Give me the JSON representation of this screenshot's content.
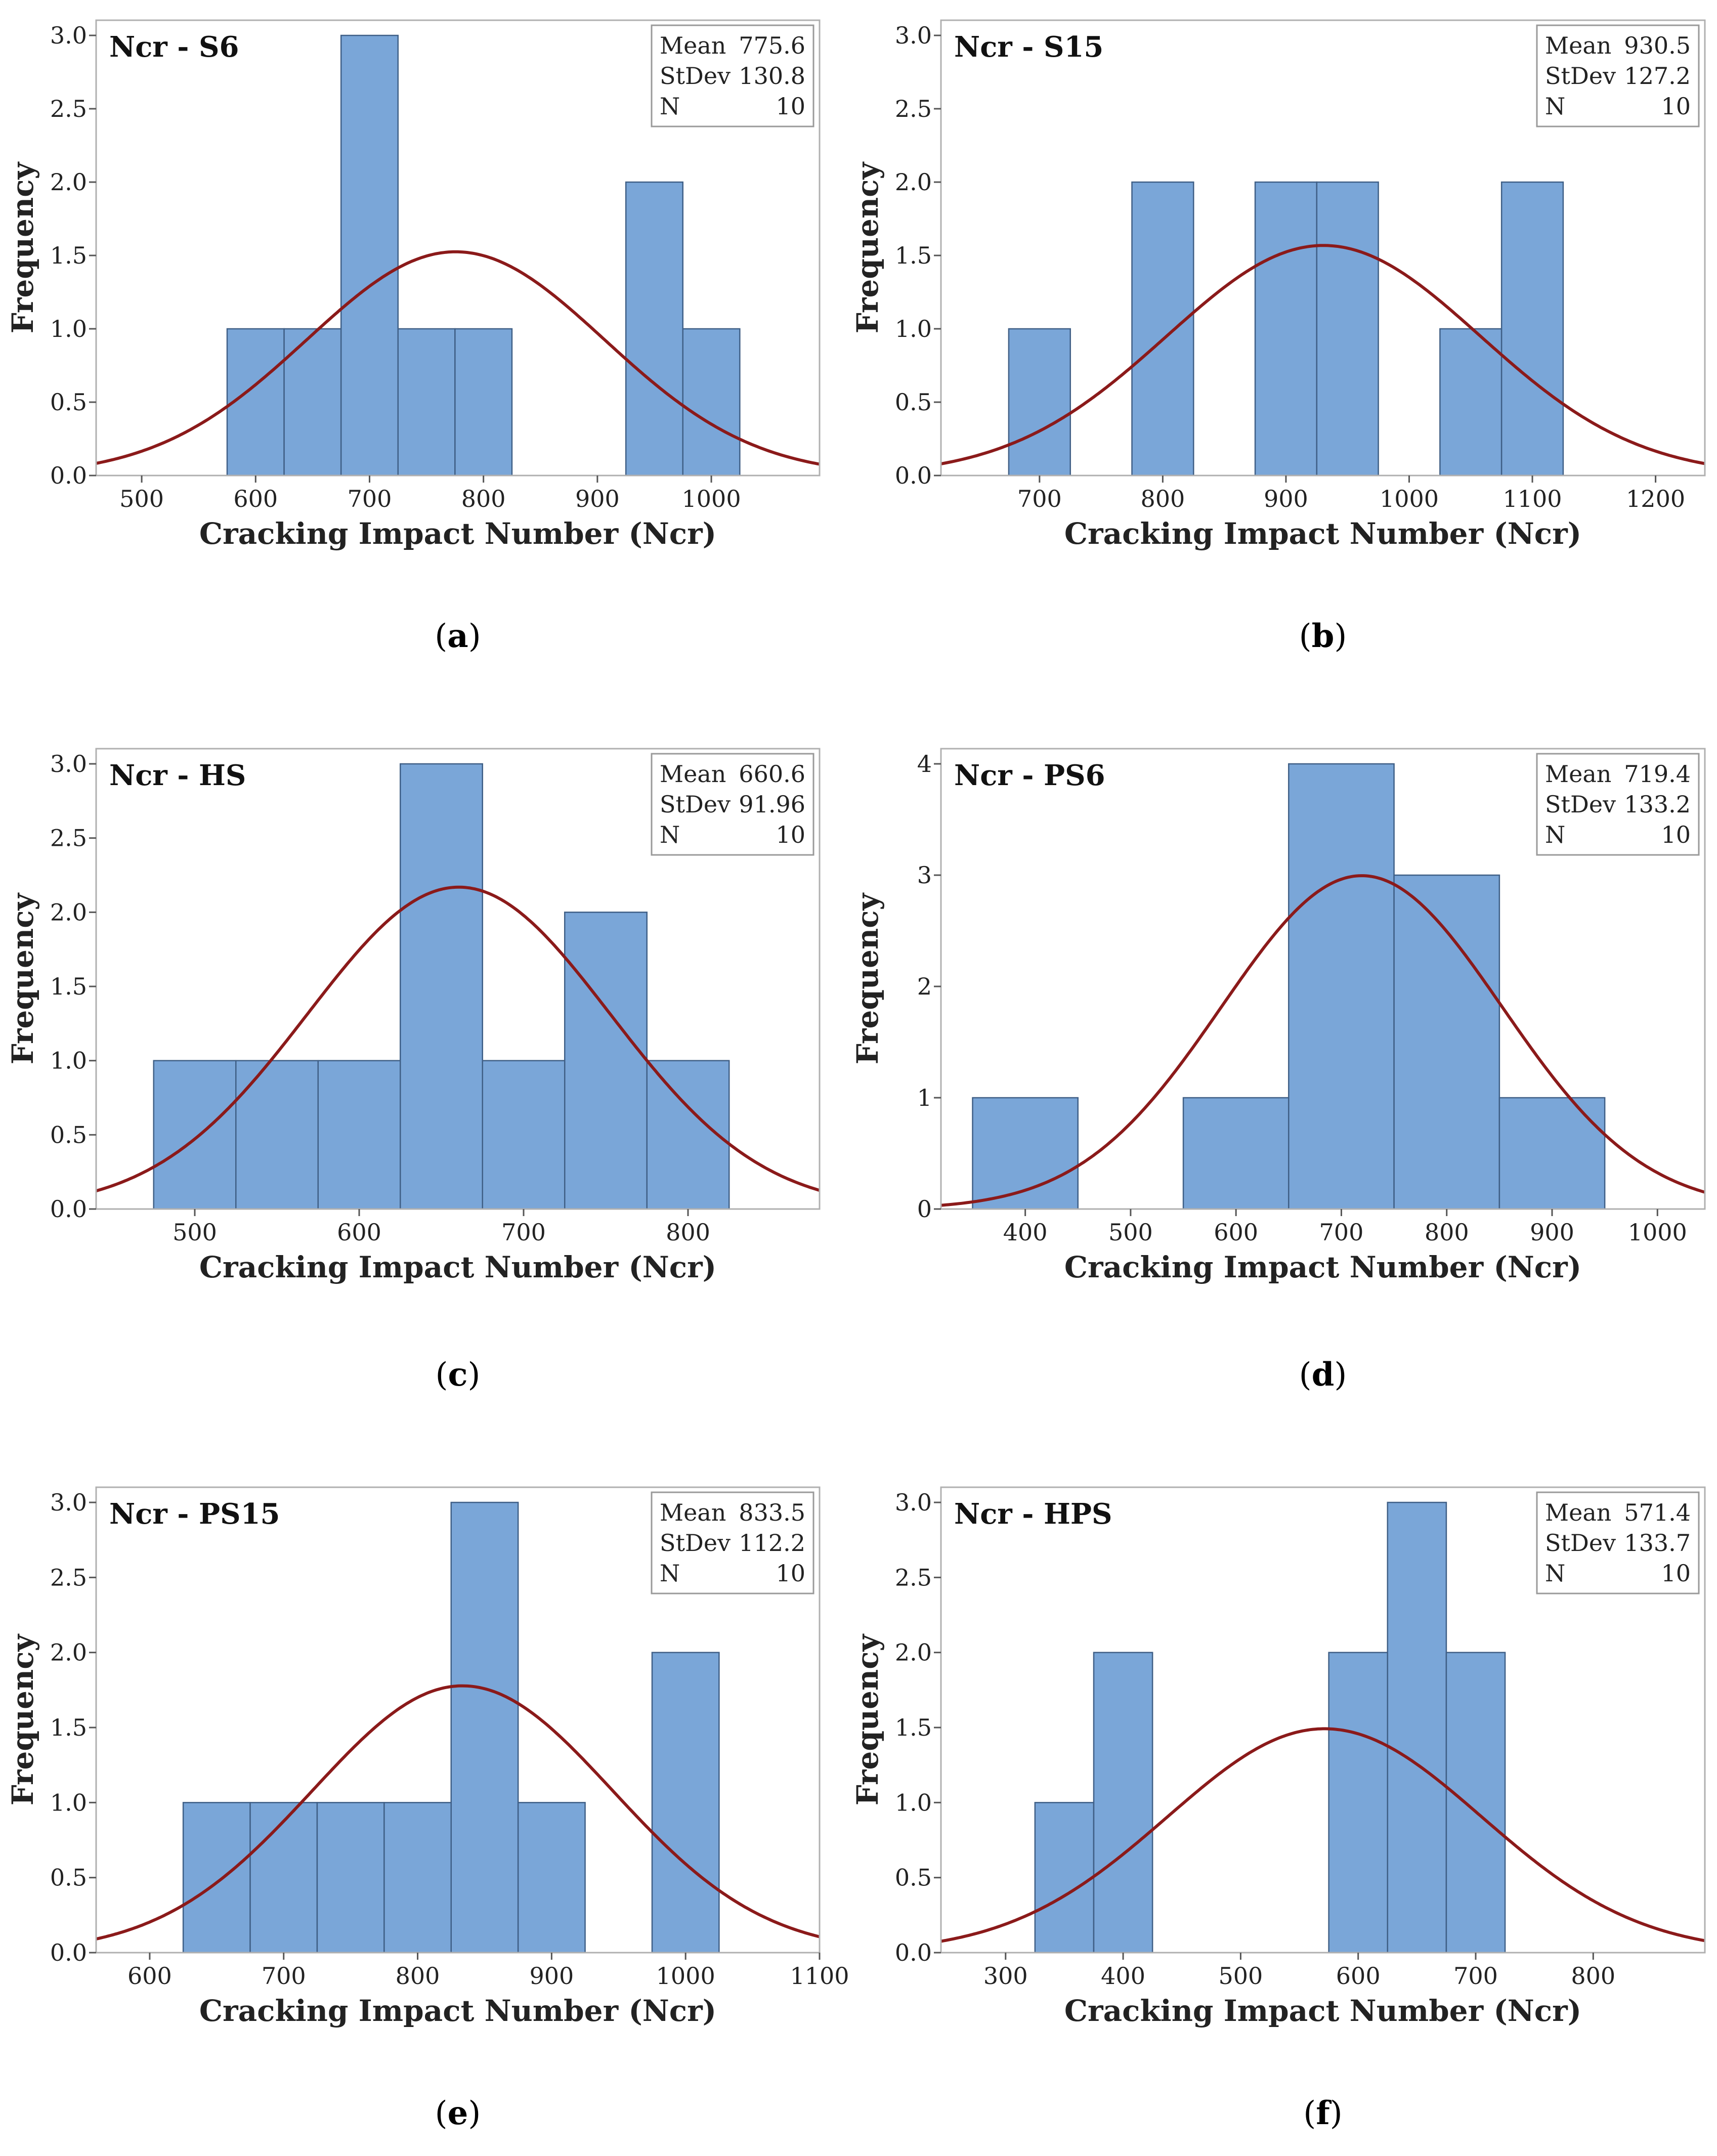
{
  "chart_data": [
    {
      "type": "histogram",
      "panel": "a",
      "title": "Ncr - S6",
      "xlabel": "Cracking Impact Number (Ncr)",
      "ylabel": "Frequency",
      "xlim": [
        460,
        1095
      ],
      "ylim": [
        0,
        3.0
      ],
      "xticks": [
        500,
        600,
        700,
        800,
        900,
        1000
      ],
      "yticks": [
        0.0,
        0.5,
        1.0,
        1.5,
        2.0,
        2.5,
        3.0
      ],
      "ytick_labels": [
        "0.0",
        "0.5",
        "1.0",
        "1.5",
        "2.0",
        "2.5",
        "3.0"
      ],
      "bin_width": 50,
      "bins": [
        {
          "start": 575,
          "end": 625,
          "count": 1
        },
        {
          "start": 625,
          "end": 675,
          "count": 1
        },
        {
          "start": 675,
          "end": 725,
          "count": 3
        },
        {
          "start": 725,
          "end": 775,
          "count": 1
        },
        {
          "start": 775,
          "end": 825,
          "count": 1
        },
        {
          "start": 925,
          "end": 975,
          "count": 2
        },
        {
          "start": 975,
          "end": 1025,
          "count": 1
        }
      ],
      "stats": [
        {
          "label": "Mean",
          "value": "775.6"
        },
        {
          "label": "StDev",
          "value": "130.8"
        },
        {
          "label": "N",
          "value": "10"
        }
      ],
      "mean": 775.6,
      "stdev": 130.8,
      "n": 10,
      "caption": "a"
    },
    {
      "type": "histogram",
      "panel": "b",
      "title": "Ncr - S15",
      "xlabel": "Cracking Impact Number (Ncr)",
      "ylabel": "Frequency",
      "xlim": [
        620,
        1240
      ],
      "ylim": [
        0,
        3.0
      ],
      "xticks": [
        700,
        800,
        900,
        1000,
        1100,
        1200
      ],
      "yticks": [
        0.0,
        0.5,
        1.0,
        1.5,
        2.0,
        2.5,
        3.0
      ],
      "ytick_labels": [
        "0.0",
        "0.5",
        "1.0",
        "1.5",
        "2.0",
        "2.5",
        "3.0"
      ],
      "bin_width": 50,
      "bins": [
        {
          "start": 675,
          "end": 725,
          "count": 1
        },
        {
          "start": 775,
          "end": 825,
          "count": 2
        },
        {
          "start": 875,
          "end": 925,
          "count": 2
        },
        {
          "start": 925,
          "end": 975,
          "count": 2
        },
        {
          "start": 1025,
          "end": 1075,
          "count": 1
        },
        {
          "start": 1075,
          "end": 1125,
          "count": 2
        }
      ],
      "stats": [
        {
          "label": "Mean",
          "value": "930.5"
        },
        {
          "label": "StDev",
          "value": "127.2"
        },
        {
          "label": "N",
          "value": "10"
        }
      ],
      "mean": 930.5,
      "stdev": 127.2,
      "n": 10,
      "caption": "b"
    },
    {
      "type": "histogram",
      "panel": "c",
      "title": "Ncr - HS",
      "xlabel": "Cracking Impact Number (Ncr)",
      "ylabel": "Frequency",
      "xlim": [
        440,
        880
      ],
      "ylim": [
        0,
        3.0
      ],
      "xticks": [
        500,
        600,
        700,
        800
      ],
      "yticks": [
        0.0,
        0.5,
        1.0,
        1.5,
        2.0,
        2.5,
        3.0
      ],
      "ytick_labels": [
        "0.0",
        "0.5",
        "1.0",
        "1.5",
        "2.0",
        "2.5",
        "3.0"
      ],
      "bin_width": 50,
      "bins": [
        {
          "start": 475,
          "end": 525,
          "count": 1
        },
        {
          "start": 525,
          "end": 575,
          "count": 1
        },
        {
          "start": 575,
          "end": 625,
          "count": 1
        },
        {
          "start": 625,
          "end": 675,
          "count": 3
        },
        {
          "start": 675,
          "end": 725,
          "count": 1
        },
        {
          "start": 725,
          "end": 775,
          "count": 2
        },
        {
          "start": 775,
          "end": 825,
          "count": 1
        }
      ],
      "stats": [
        {
          "label": "Mean",
          "value": "660.6"
        },
        {
          "label": "StDev",
          "value": "91.96"
        },
        {
          "label": "N",
          "value": "10"
        }
      ],
      "mean": 660.6,
      "stdev": 91.96,
      "n": 10,
      "caption": "c"
    },
    {
      "type": "histogram",
      "panel": "d",
      "title": "Ncr - PS6",
      "xlabel": "Cracking Impact Number (Ncr)",
      "ylabel": "Frequency",
      "xlim": [
        320,
        1045
      ],
      "ylim": [
        0,
        4
      ],
      "xticks": [
        400,
        500,
        600,
        700,
        800,
        900,
        1000
      ],
      "yticks": [
        0,
        1,
        2,
        3,
        4
      ],
      "ytick_labels": [
        "0",
        "1",
        "2",
        "3",
        "4"
      ],
      "bin_width": 100,
      "bins": [
        {
          "start": 350,
          "end": 450,
          "count": 1
        },
        {
          "start": 550,
          "end": 650,
          "count": 1
        },
        {
          "start": 650,
          "end": 750,
          "count": 4
        },
        {
          "start": 750,
          "end": 850,
          "count": 3
        },
        {
          "start": 850,
          "end": 950,
          "count": 1
        }
      ],
      "stats": [
        {
          "label": "Mean",
          "value": "719.4"
        },
        {
          "label": "StDev",
          "value": "133.2"
        },
        {
          "label": "N",
          "value": "10"
        }
      ],
      "mean": 719.4,
      "stdev": 133.2,
      "n": 10,
      "caption": "d"
    },
    {
      "type": "histogram",
      "panel": "e",
      "title": "Ncr - PS15",
      "xlabel": "Cracking Impact Number (Ncr)",
      "ylabel": "Frequency",
      "xlim": [
        560,
        1100
      ],
      "ylim": [
        0,
        3.0
      ],
      "xticks": [
        600,
        700,
        800,
        900,
        1000,
        1100
      ],
      "yticks": [
        0.0,
        0.5,
        1.0,
        1.5,
        2.0,
        2.5,
        3.0
      ],
      "ytick_labels": [
        "0.0",
        "0.5",
        "1.0",
        "1.5",
        "2.0",
        "2.5",
        "3.0"
      ],
      "bin_width": 50,
      "bins": [
        {
          "start": 625,
          "end": 675,
          "count": 1
        },
        {
          "start": 675,
          "end": 725,
          "count": 1
        },
        {
          "start": 725,
          "end": 775,
          "count": 1
        },
        {
          "start": 775,
          "end": 825,
          "count": 1
        },
        {
          "start": 825,
          "end": 875,
          "count": 3
        },
        {
          "start": 875,
          "end": 925,
          "count": 1
        },
        {
          "start": 975,
          "end": 1025,
          "count": 2
        }
      ],
      "stats": [
        {
          "label": "Mean",
          "value": "833.5"
        },
        {
          "label": "StDev",
          "value": "112.2"
        },
        {
          "label": "N",
          "value": "10"
        }
      ],
      "mean": 833.5,
      "stdev": 112.2,
      "n": 10,
      "caption": "e"
    },
    {
      "type": "histogram",
      "panel": "f",
      "title": "Ncr - HPS",
      "xlabel": "Cracking Impact Number (Ncr)",
      "ylabel": "Frequency",
      "xlim": [
        245,
        895
      ],
      "ylim": [
        0,
        3.0
      ],
      "xticks": [
        300,
        400,
        500,
        600,
        700,
        800
      ],
      "yticks": [
        0.0,
        0.5,
        1.0,
        1.5,
        2.0,
        2.5,
        3.0
      ],
      "ytick_labels": [
        "0.0",
        "0.5",
        "1.0",
        "1.5",
        "2.0",
        "2.5",
        "3.0"
      ],
      "bin_width": 50,
      "bins": [
        {
          "start": 325,
          "end": 375,
          "count": 1
        },
        {
          "start": 375,
          "end": 425,
          "count": 2
        },
        {
          "start": 575,
          "end": 625,
          "count": 2
        },
        {
          "start": 625,
          "end": 675,
          "count": 3
        },
        {
          "start": 675,
          "end": 725,
          "count": 2
        }
      ],
      "stats": [
        {
          "label": "Mean",
          "value": "571.4"
        },
        {
          "label": "StDev",
          "value": "133.7"
        },
        {
          "label": "N",
          "value": "10"
        }
      ],
      "mean": 571.4,
      "stdev": 133.7,
      "n": 10,
      "caption": "f"
    }
  ],
  "style": {
    "bar_fill": "#7aa6d8",
    "bar_stroke": "#3f5f86",
    "curve_color": "#8b1a1a",
    "frame_color": "#b0b0b0"
  }
}
